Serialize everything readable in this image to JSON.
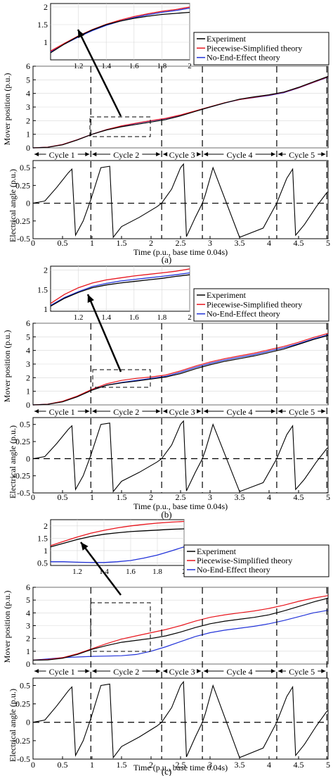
{
  "chart_data": [
    {
      "panel": "(a)",
      "type": "line",
      "caption": "(a)",
      "legend": [
        "Experiment",
        "Piecewise-Simplified theory",
        "No-End-Effect theory"
      ],
      "colors": {
        "experiment": "#000000",
        "piecewise": "#e8141c",
        "noend": "#2233d9"
      },
      "cycles": [
        "Cycle 1",
        "Cycle 2",
        "Cycle 3",
        "Cycle 4",
        "Cycle 5"
      ],
      "cycle_boundaries": [
        0,
        0.98,
        2.18,
        2.87,
        4.13,
        4.98
      ],
      "position": {
        "ylabel": "Mover position (p.u.)",
        "xlim": [
          0,
          5
        ],
        "ylim": [
          0,
          6
        ],
        "yticks": [
          "0",
          "1",
          "2",
          "3",
          "4",
          "5",
          "6"
        ],
        "x": [
          0,
          0.25,
          0.5,
          0.75,
          1.0,
          1.25,
          1.5,
          1.75,
          2.0,
          2.25,
          2.5,
          2.75,
          3.0,
          3.25,
          3.5,
          3.75,
          4.0,
          4.25,
          4.5,
          4.75,
          5.0
        ],
        "series": [
          {
            "key": "noend",
            "values": [
              0,
              0.05,
              0.25,
              0.6,
              1.0,
              1.35,
              1.6,
              1.8,
              1.98,
              2.15,
              2.4,
              2.7,
              3.0,
              3.3,
              3.55,
              3.7,
              3.85,
              4.05,
              4.4,
              4.8,
              5.2
            ]
          },
          {
            "key": "piecewise",
            "values": [
              0,
              0.05,
              0.25,
              0.6,
              1.0,
              1.35,
              1.62,
              1.82,
              2.0,
              2.17,
              2.42,
              2.72,
              3.02,
              3.32,
              3.55,
              3.72,
              3.88,
              4.08,
              4.42,
              4.82,
              5.22
            ]
          },
          {
            "key": "experiment",
            "values": [
              0,
              0.04,
              0.22,
              0.58,
              1.0,
              1.32,
              1.55,
              1.72,
              1.9,
              2.08,
              2.35,
              2.68,
              3.0,
              3.3,
              3.58,
              3.75,
              3.9,
              4.1,
              4.45,
              4.85,
              5.25
            ]
          }
        ]
      },
      "inset": {
        "xlim": [
          1,
          2
        ],
        "ylim": [
          0.5,
          2.1
        ],
        "xticks": [
          "1.2",
          "1.4",
          "1.6",
          "1.8",
          "2"
        ],
        "yticks": [
          "1",
          "1.5",
          "2"
        ],
        "x": [
          1.0,
          1.1,
          1.2,
          1.3,
          1.4,
          1.5,
          1.6,
          1.7,
          1.8,
          1.9,
          2.0
        ],
        "series": [
          {
            "key": "noend",
            "values": [
              0.72,
              0.95,
              1.15,
              1.33,
              1.48,
              1.6,
              1.7,
              1.78,
              1.85,
              1.9,
              1.97
            ]
          },
          {
            "key": "piecewise",
            "values": [
              0.75,
              0.97,
              1.18,
              1.36,
              1.51,
              1.63,
              1.73,
              1.81,
              1.88,
              1.93,
              2.0
            ]
          },
          {
            "key": "experiment",
            "values": [
              0.7,
              0.95,
              1.17,
              1.35,
              1.5,
              1.6,
              1.68,
              1.74,
              1.79,
              1.82,
              1.85
            ]
          }
        ]
      },
      "angle": {
        "ylabel": "Electrical angle (p.u.)",
        "xlabel": "Time (p.u., base time 0.04s)",
        "xlim": [
          0,
          5
        ],
        "ylim": [
          -0.5,
          0.6
        ],
        "xticks": [
          "0",
          "0.5",
          "1",
          "1.5",
          "2",
          "2.5",
          "3",
          "3.5",
          "4",
          "4.5",
          "5"
        ],
        "yticks": [
          "-0.5",
          "-0.25",
          "0",
          "0.25",
          "0.5"
        ],
        "x": [
          0,
          0.2,
          0.4,
          0.6,
          0.66,
          0.72,
          0.85,
          0.98,
          1.15,
          1.3,
          1.36,
          1.5,
          1.8,
          2.1,
          2.18,
          2.35,
          2.5,
          2.55,
          2.6,
          2.75,
          2.87,
          2.92,
          3.05,
          3.5,
          3.9,
          4.13,
          4.3,
          4.4,
          4.45,
          4.6,
          4.8,
          4.98,
          5.0
        ],
        "values": [
          0,
          0.03,
          0.22,
          0.43,
          0.48,
          -0.45,
          -0.25,
          0.05,
          0.5,
          0.52,
          -0.48,
          -0.33,
          -0.2,
          -0.05,
          0.0,
          0.2,
          0.5,
          0.55,
          -0.47,
          -0.2,
          0.0,
          0.12,
          0.5,
          -0.48,
          -0.35,
          0.0,
          0.35,
          0.48,
          -0.45,
          -0.3,
          -0.05,
          0.15,
          0.16
        ]
      }
    },
    {
      "panel": "(b)",
      "type": "line",
      "caption": "(b)",
      "legend": [
        "Experiment",
        "Piecewise-Simplified theory",
        "No-End-Effect theory"
      ],
      "colors": {
        "experiment": "#000000",
        "piecewise": "#e8141c",
        "noend": "#2233d9"
      },
      "cycles": [
        "Cycle 1",
        "Cycle 2",
        "Cycle 3",
        "Cycle 4",
        "Cycle 5"
      ],
      "cycle_boundaries": [
        0,
        0.98,
        2.18,
        2.87,
        4.13,
        4.98
      ],
      "position": {
        "ylabel": "Mover position (p.u.)",
        "xlim": [
          0,
          5
        ],
        "ylim": [
          0,
          6
        ],
        "yticks": [
          "0",
          "1",
          "2",
          "3",
          "4",
          "5",
          "6"
        ],
        "x": [
          0,
          0.25,
          0.5,
          0.75,
          1.0,
          1.25,
          1.5,
          1.75,
          2.0,
          2.25,
          2.5,
          2.75,
          3.0,
          3.25,
          3.5,
          3.75,
          4.0,
          4.25,
          4.5,
          4.75,
          5.0
        ],
        "series": [
          {
            "key": "noend",
            "values": [
              0,
              0.05,
              0.25,
              0.6,
              1.1,
              1.45,
              1.65,
              1.8,
              1.95,
              2.1,
              2.4,
              2.75,
              3.05,
              3.3,
              3.5,
              3.7,
              3.95,
              4.2,
              4.5,
              4.85,
              5.15
            ]
          },
          {
            "key": "piecewise",
            "values": [
              0,
              0.05,
              0.27,
              0.65,
              1.15,
              1.55,
              1.8,
              1.95,
              2.05,
              2.2,
              2.5,
              2.85,
              3.15,
              3.4,
              3.6,
              3.8,
              4.05,
              4.3,
              4.6,
              4.95,
              5.25
            ]
          },
          {
            "key": "experiment",
            "values": [
              0,
              0.04,
              0.22,
              0.6,
              1.08,
              1.45,
              1.62,
              1.75,
              1.9,
              2.05,
              2.3,
              2.65,
              2.95,
              3.2,
              3.4,
              3.6,
              3.85,
              4.1,
              4.45,
              4.8,
              5.1
            ]
          }
        ]
      },
      "inset": {
        "xlim": [
          1,
          2
        ],
        "ylim": [
          0.95,
          2.1
        ],
        "xticks": [
          "1.2",
          "1.4",
          "1.6",
          "1.8",
          "2"
        ],
        "yticks": [
          "1",
          "1.5",
          "2"
        ],
        "x": [
          1.0,
          1.1,
          1.2,
          1.3,
          1.4,
          1.5,
          1.6,
          1.7,
          1.8,
          1.9,
          2.0
        ],
        "series": [
          {
            "key": "noend",
            "values": [
              1.1,
              1.3,
              1.45,
              1.58,
              1.66,
              1.72,
              1.76,
              1.8,
              1.84,
              1.88,
              1.93
            ]
          },
          {
            "key": "piecewise",
            "values": [
              1.15,
              1.38,
              1.55,
              1.67,
              1.75,
              1.8,
              1.85,
              1.89,
              1.93,
              1.97,
              2.03
            ]
          },
          {
            "key": "experiment",
            "values": [
              1.08,
              1.28,
              1.43,
              1.55,
              1.62,
              1.67,
              1.71,
              1.75,
              1.79,
              1.84,
              1.88
            ]
          }
        ]
      },
      "angle": {
        "ylabel": "Electrical angle (p.u.)",
        "xlabel": "Time (p.u., base time 0.04s)",
        "xlim": [
          0,
          5
        ],
        "ylim": [
          -0.5,
          0.6
        ],
        "xticks": [
          "0",
          "0.5",
          "1",
          "1.5",
          "2",
          "2.5",
          "3",
          "3.5",
          "4",
          "4.5",
          "5"
        ],
        "yticks": [
          "-0.5",
          "-0.25",
          "0",
          "0.25",
          "0.5"
        ],
        "x": [
          0,
          0.2,
          0.4,
          0.6,
          0.66,
          0.72,
          0.85,
          0.98,
          1.15,
          1.3,
          1.36,
          1.5,
          1.8,
          2.1,
          2.18,
          2.35,
          2.5,
          2.55,
          2.6,
          2.75,
          2.87,
          2.92,
          3.05,
          3.5,
          3.9,
          4.13,
          4.3,
          4.4,
          4.45,
          4.6,
          4.8,
          4.98,
          5.0
        ],
        "values": [
          0,
          0.03,
          0.22,
          0.43,
          0.48,
          -0.45,
          -0.25,
          0.05,
          0.5,
          0.52,
          -0.48,
          -0.33,
          -0.2,
          -0.05,
          0.0,
          0.2,
          0.5,
          0.55,
          -0.47,
          -0.2,
          0.0,
          0.12,
          0.5,
          -0.48,
          -0.35,
          0.0,
          0.35,
          0.48,
          -0.45,
          -0.3,
          -0.05,
          0.15,
          0.16
        ]
      }
    },
    {
      "panel": "(c)",
      "type": "line",
      "caption": "(c)",
      "legend": [
        "Experiment",
        "Piecewise-Simplified theory",
        "No-End-Effect theory"
      ],
      "colors": {
        "experiment": "#000000",
        "piecewise": "#e8141c",
        "noend": "#2233d9"
      },
      "cycles": [
        "Cycle 1",
        "Cycle 2",
        "Cycle 3",
        "Cycle 4",
        "Cycle 5"
      ],
      "cycle_boundaries": [
        0,
        0.98,
        2.18,
        2.87,
        4.13,
        4.98
      ],
      "position": {
        "ylabel": "Mover position (p.u.)",
        "xlim": [
          0,
          5
        ],
        "ylim": [
          0,
          6
        ],
        "yticks": [
          "0",
          "1",
          "2",
          "3",
          "4",
          "5",
          "6"
        ],
        "x": [
          0,
          0.25,
          0.5,
          0.75,
          1.0,
          1.25,
          1.5,
          1.75,
          2.0,
          2.25,
          2.5,
          2.75,
          3.0,
          3.25,
          3.5,
          3.75,
          4.0,
          4.25,
          4.5,
          4.75,
          5.0
        ],
        "series": [
          {
            "key": "noend",
            "values": [
              0.3,
              0.4,
              0.5,
              0.55,
              0.6,
              0.62,
              0.65,
              0.75,
              1.0,
              1.35,
              1.75,
              2.15,
              2.45,
              2.65,
              2.8,
              2.95,
              3.15,
              3.4,
              3.7,
              4.0,
              4.2
            ]
          },
          {
            "key": "piecewise",
            "values": [
              0.3,
              0.35,
              0.5,
              0.8,
              1.2,
              1.6,
              1.95,
              2.2,
              2.45,
              2.7,
              3.0,
              3.35,
              3.65,
              3.85,
              4.0,
              4.15,
              4.35,
              4.6,
              4.9,
              5.15,
              5.35
            ]
          },
          {
            "key": "experiment",
            "values": [
              0.3,
              0.32,
              0.45,
              0.75,
              1.15,
              1.45,
              1.7,
              1.85,
              2.0,
              2.2,
              2.5,
              2.85,
              3.15,
              3.35,
              3.5,
              3.65,
              3.85,
              4.15,
              4.5,
              4.85,
              5.15
            ]
          }
        ]
      },
      "inset": {
        "xlim": [
          1,
          2
        ],
        "ylim": [
          0.4,
          2.25
        ],
        "xticks": [
          "1.2",
          "1.4",
          "1.6",
          "1.8",
          "2"
        ],
        "yticks": [
          "0.5",
          "1",
          "1.5",
          "2"
        ],
        "x": [
          1.0,
          1.1,
          1.2,
          1.3,
          1.4,
          1.5,
          1.6,
          1.7,
          1.8,
          1.9,
          2.0
        ],
        "series": [
          {
            "key": "noend",
            "values": [
              0.55,
              0.55,
              0.53,
              0.52,
              0.52,
              0.55,
              0.6,
              0.7,
              0.82,
              0.98,
              1.15
            ]
          },
          {
            "key": "piecewise",
            "values": [
              1.2,
              1.38,
              1.55,
              1.7,
              1.82,
              1.92,
              2.0,
              2.06,
              2.11,
              2.15,
              2.18
            ]
          },
          {
            "key": "experiment",
            "values": [
              1.15,
              1.3,
              1.45,
              1.57,
              1.66,
              1.72,
              1.77,
              1.8,
              1.83,
              1.86,
              1.88
            ]
          }
        ]
      },
      "angle": {
        "ylabel": "Electrical angle (p.u.)",
        "xlabel": "Time (p.u., base time 0.04s)",
        "xlim": [
          0,
          5
        ],
        "ylim": [
          -0.5,
          0.6
        ],
        "xticks": [
          "0",
          "0.5",
          "1",
          "1.5",
          "2",
          "2.5",
          "3",
          "3.5",
          "4",
          "4.5",
          "5"
        ],
        "yticks": [
          "-0.5",
          "-0.25",
          "0",
          "0.25",
          "0.5"
        ],
        "x": [
          0,
          0.2,
          0.4,
          0.6,
          0.66,
          0.72,
          0.85,
          0.98,
          1.15,
          1.3,
          1.36,
          1.5,
          1.8,
          2.1,
          2.18,
          2.35,
          2.5,
          2.55,
          2.6,
          2.75,
          2.87,
          2.92,
          3.05,
          3.5,
          3.9,
          4.13,
          4.3,
          4.4,
          4.45,
          4.6,
          4.8,
          4.98,
          5.0
        ],
        "values": [
          0,
          0.03,
          0.22,
          0.43,
          0.48,
          -0.45,
          -0.25,
          0.05,
          0.5,
          0.52,
          -0.48,
          -0.33,
          -0.2,
          -0.05,
          0.0,
          0.2,
          0.5,
          0.55,
          -0.47,
          -0.2,
          0.0,
          0.12,
          0.5,
          -0.48,
          -0.35,
          0.0,
          0.35,
          0.48,
          -0.45,
          -0.3,
          -0.05,
          0.15,
          0.16
        ]
      }
    }
  ]
}
